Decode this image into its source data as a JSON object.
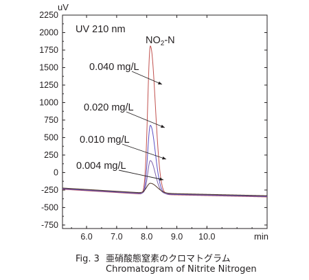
{
  "chart_data": {
    "type": "line",
    "y_unit": "uV",
    "x_unit": "min",
    "detector_label": "UV 210 nm",
    "peak_label": "NO2-N",
    "xlim": [
      5.2,
      12.0
    ],
    "ylim": [
      -800,
      2250
    ],
    "x_ticks": [
      "6.0",
      "7.0",
      "8.0",
      "9.0",
      "10.0"
    ],
    "y_ticks": [
      "2250",
      "2000",
      "1750",
      "1500",
      "1250",
      "1000",
      "750",
      "500",
      "250",
      "0",
      "-250",
      "-500",
      "-750"
    ],
    "baseline": {
      "start": [
        5.2,
        -230
      ],
      "dip": [
        7.9,
        -300
      ],
      "end": [
        12.0,
        -340
      ]
    },
    "series": [
      {
        "name": "0.040 mg/L",
        "color": "#c0504d",
        "peak_rt": 8.12,
        "peak_height": 1820
      },
      {
        "name": "0.020 mg/L",
        "color": "#5b4fc4",
        "peak_rt": 8.12,
        "peak_height": 680
      },
      {
        "name": "0.010 mg/L",
        "color": "#7b5fa8",
        "peak_rt": 8.12,
        "peak_height": 170
      },
      {
        "name": "0.004 mg/L",
        "color": "#4a3020",
        "peak_rt": 8.12,
        "peak_height": -160
      }
    ]
  },
  "caption": {
    "fig_number": "Fig. 3",
    "title_jp": "亜硝酸態窒素のクロマトグラム",
    "title_en": "Chromatogram of Nitrite Nitrogen"
  }
}
